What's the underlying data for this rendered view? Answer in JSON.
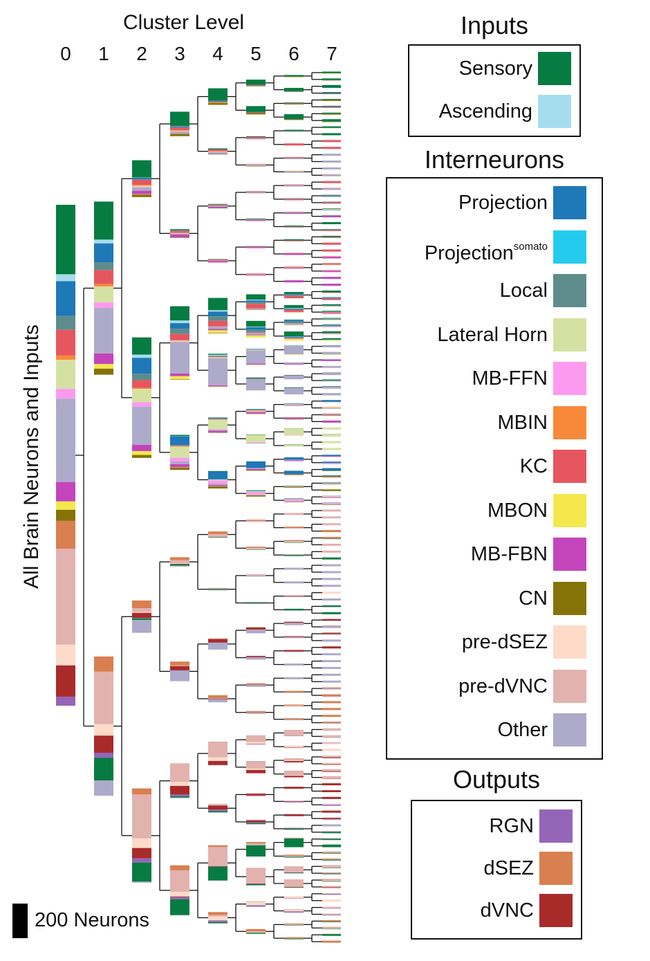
{
  "header": {
    "title": "Cluster Level",
    "levels": [
      "0",
      "1",
      "2",
      "3",
      "4",
      "5",
      "6",
      "7"
    ]
  },
  "y_axis_label": "All Brain Neurons and Inputs",
  "scale_bar": {
    "label": "200 Neurons"
  },
  "colors": {
    "sensory": "#067c42",
    "ascending": "#a5ddee",
    "projection": "#1f78b8",
    "projection_somato": "#25cbee",
    "local": "#5e8c8c",
    "lateral_horn": "#d5e1a2",
    "mb_ffn": "#fc9aef",
    "mbin": "#f9893a",
    "kc": "#e6565f",
    "mbon": "#f4e84c",
    "mb_fbn": "#c445bb",
    "cn": "#857308",
    "pre_dsez": "#fddbc8",
    "pre_dvnc": "#e2b2ae",
    "other": "#aeaaca",
    "rgn": "#9565b8",
    "dsez": "#d97f50",
    "dvnc": "#a82b2a"
  },
  "legend": {
    "inputs": {
      "title": "Inputs",
      "items": [
        {
          "label": "Sensory",
          "key": "sensory"
        },
        {
          "label": "Ascending",
          "key": "ascending"
        }
      ]
    },
    "interneurons": {
      "title": "Interneurons",
      "items": [
        {
          "label": "Projection",
          "key": "projection"
        },
        {
          "label": "Projection",
          "sup": "somato",
          "key": "projection_somato"
        },
        {
          "label": "Local",
          "key": "local"
        },
        {
          "label": "Lateral Horn",
          "key": "lateral_horn"
        },
        {
          "label": "MB-FFN",
          "key": "mb_ffn"
        },
        {
          "label": "MBIN",
          "key": "mbin"
        },
        {
          "label": "KC",
          "key": "kc"
        },
        {
          "label": "MBON",
          "key": "mbon"
        },
        {
          "label": "MB-FBN",
          "key": "mb_fbn"
        },
        {
          "label": "CN",
          "key": "cn"
        },
        {
          "label": "pre-dSEZ",
          "key": "pre_dsez"
        },
        {
          "label": "pre-dVNC",
          "key": "pre_dvnc"
        },
        {
          "label": "Other",
          "key": "other"
        }
      ]
    },
    "outputs": {
      "title": "Outputs",
      "items": [
        {
          "label": "RGN",
          "key": "rgn"
        },
        {
          "label": "dSEZ",
          "key": "dsez"
        },
        {
          "label": "dVNC",
          "key": "dvnc"
        }
      ]
    }
  },
  "root_composition": [
    [
      "sensory",
      100
    ],
    [
      "ascending",
      10
    ],
    [
      "projection",
      50
    ],
    [
      "local",
      20
    ],
    [
      "kc",
      37
    ],
    [
      "mbin",
      6
    ],
    [
      "lateral_horn",
      42
    ],
    [
      "mb_ffn",
      14
    ],
    [
      "other",
      120
    ],
    [
      "mb_fbn",
      28
    ],
    [
      "mbon",
      12
    ],
    [
      "cn",
      16
    ],
    [
      "dsez",
      40
    ],
    [
      "pre_dvnc",
      138
    ],
    [
      "pre_dsez",
      30
    ],
    [
      "dvnc",
      45
    ],
    [
      "rgn",
      13
    ]
  ]
}
